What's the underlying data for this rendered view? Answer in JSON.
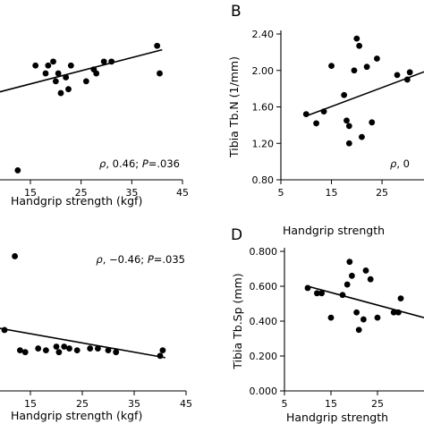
{
  "chart_data": [
    {
      "id": "A",
      "type": "scatter",
      "panel_label": "",
      "xlabel": "Handgrip strength (kgf)",
      "ylabel": "",
      "xlim": [
        5,
        45
      ],
      "ylim": [
        0.6,
        2.45
      ],
      "x_ticks": [
        "15",
        "25",
        "35",
        "45"
      ],
      "x_tick_values": [
        15,
        25,
        35,
        45
      ],
      "y_ticks": [],
      "y_tick_values": [],
      "annotation": {
        "rho_symbol": "ρ",
        "rest": ", 0.46; ",
        "p_symbol": "P",
        "p_value": "=.036"
      },
      "points": [
        {
          "x": 12.5,
          "y": 0.72
        },
        {
          "x": 16,
          "y": 2.05
        },
        {
          "x": 18,
          "y": 1.95
        },
        {
          "x": 18.5,
          "y": 2.05
        },
        {
          "x": 19.5,
          "y": 2.1
        },
        {
          "x": 20,
          "y": 1.85
        },
        {
          "x": 20.5,
          "y": 1.95
        },
        {
          "x": 21,
          "y": 1.7
        },
        {
          "x": 22,
          "y": 1.9
        },
        {
          "x": 22.5,
          "y": 1.75
        },
        {
          "x": 23,
          "y": 2.05
        },
        {
          "x": 26,
          "y": 1.85
        },
        {
          "x": 27.5,
          "y": 2.0
        },
        {
          "x": 28,
          "y": 1.95
        },
        {
          "x": 29.5,
          "y": 2.1
        },
        {
          "x": 31,
          "y": 2.1
        },
        {
          "x": 40,
          "y": 2.3
        },
        {
          "x": 40.5,
          "y": 1.95
        }
      ],
      "fit": {
        "x": [
          5,
          41
        ],
        "y": [
          1.65,
          2.25
        ]
      }
    },
    {
      "id": "B",
      "type": "scatter",
      "panel_label": "B",
      "xlabel": "Handgrip strength",
      "ylabel": "Tibia Tb.N (1/mm)",
      "xlim": [
        5,
        35
      ],
      "ylim": [
        0.8,
        2.4
      ],
      "x_ticks": [
        "5",
        "15",
        "25"
      ],
      "x_tick_values": [
        5,
        15,
        25
      ],
      "y_ticks": [
        "0.80",
        "1.20",
        "1.60",
        "2.00",
        "2.40"
      ],
      "y_tick_values": [
        0.8,
        1.2,
        1.6,
        2.0,
        2.4
      ],
      "annotation": {
        "rho_symbol": "ρ",
        "rest": ", 0",
        "p_symbol": "",
        "p_value": ""
      },
      "points": [
        {
          "x": 10,
          "y": 1.52
        },
        {
          "x": 12,
          "y": 1.42
        },
        {
          "x": 13.5,
          "y": 1.55
        },
        {
          "x": 15,
          "y": 2.05
        },
        {
          "x": 17.5,
          "y": 1.73
        },
        {
          "x": 18,
          "y": 1.45
        },
        {
          "x": 18.5,
          "y": 1.2
        },
        {
          "x": 18.5,
          "y": 1.39
        },
        {
          "x": 19.5,
          "y": 2.0
        },
        {
          "x": 20,
          "y": 2.35
        },
        {
          "x": 20.5,
          "y": 2.27
        },
        {
          "x": 21,
          "y": 1.27
        },
        {
          "x": 22,
          "y": 2.04
        },
        {
          "x": 23,
          "y": 1.43
        },
        {
          "x": 24,
          "y": 2.13
        },
        {
          "x": 28,
          "y": 1.95
        },
        {
          "x": 30,
          "y": 1.9
        },
        {
          "x": 30.5,
          "y": 1.98
        },
        {
          "x": 34,
          "y": 2.0
        }
      ],
      "fit": {
        "x": [
          10,
          35
        ],
        "y": [
          1.5,
          2.02
        ]
      }
    },
    {
      "id": "C",
      "type": "scatter",
      "panel_label": "",
      "xlabel": "Handgrip strength (kgf)",
      "ylabel": "",
      "xlim": [
        5,
        45
      ],
      "ylim": [
        0.0,
        0.8
      ],
      "x_ticks": [
        "15",
        "25",
        "35",
        "45"
      ],
      "x_tick_values": [
        15,
        25,
        35,
        45
      ],
      "y_ticks": [],
      "y_tick_values": [],
      "annotation": {
        "rho_symbol": "ρ",
        "rest": ", −0.46; ",
        "p_symbol": "P",
        "p_value": "=.035"
      },
      "points": [
        {
          "x": 10,
          "y": 0.33
        },
        {
          "x": 12,
          "y": 0.73
        },
        {
          "x": 13,
          "y": 0.22
        },
        {
          "x": 14,
          "y": 0.21
        },
        {
          "x": 16.5,
          "y": 0.23
        },
        {
          "x": 18,
          "y": 0.22
        },
        {
          "x": 20,
          "y": 0.24
        },
        {
          "x": 20.5,
          "y": 0.21
        },
        {
          "x": 21.5,
          "y": 0.24
        },
        {
          "x": 22.5,
          "y": 0.23
        },
        {
          "x": 24,
          "y": 0.22
        },
        {
          "x": 26.5,
          "y": 0.23
        },
        {
          "x": 28,
          "y": 0.23
        },
        {
          "x": 30,
          "y": 0.22
        },
        {
          "x": 31.5,
          "y": 0.21
        },
        {
          "x": 40,
          "y": 0.19
        },
        {
          "x": 40.5,
          "y": 0.22
        }
      ],
      "fit": {
        "x": [
          5,
          41
        ],
        "y": [
          0.36,
          0.18
        ]
      }
    },
    {
      "id": "D",
      "type": "scatter",
      "panel_label": "D",
      "xlabel": "Handgrip strength",
      "ylabel": "Tibia Tb.Sp (mm)",
      "xlim": [
        5,
        35
      ],
      "ylim": [
        0.0,
        0.8
      ],
      "x_ticks": [
        "5",
        "15",
        "25"
      ],
      "x_tick_values": [
        5,
        15,
        25
      ],
      "y_ticks": [
        "0.000",
        "0.200",
        "0.400",
        "0.600",
        "0.800"
      ],
      "y_tick_values": [
        0.0,
        0.2,
        0.4,
        0.6,
        0.8
      ],
      "annotation": null,
      "points": [
        {
          "x": 10,
          "y": 0.59
        },
        {
          "x": 12,
          "y": 0.56
        },
        {
          "x": 13,
          "y": 0.56
        },
        {
          "x": 15,
          "y": 0.42
        },
        {
          "x": 17.5,
          "y": 0.55
        },
        {
          "x": 18.5,
          "y": 0.61
        },
        {
          "x": 19,
          "y": 0.74
        },
        {
          "x": 19.5,
          "y": 0.66
        },
        {
          "x": 20.5,
          "y": 0.45
        },
        {
          "x": 21,
          "y": 0.35
        },
        {
          "x": 22,
          "y": 0.41
        },
        {
          "x": 22.5,
          "y": 0.69
        },
        {
          "x": 23.5,
          "y": 0.64
        },
        {
          "x": 25,
          "y": 0.42
        },
        {
          "x": 28.5,
          "y": 0.45
        },
        {
          "x": 29.5,
          "y": 0.45
        },
        {
          "x": 30,
          "y": 0.53
        }
      ],
      "fit": {
        "x": [
          10,
          35
        ],
        "y": [
          0.6,
          0.42
        ]
      }
    }
  ]
}
